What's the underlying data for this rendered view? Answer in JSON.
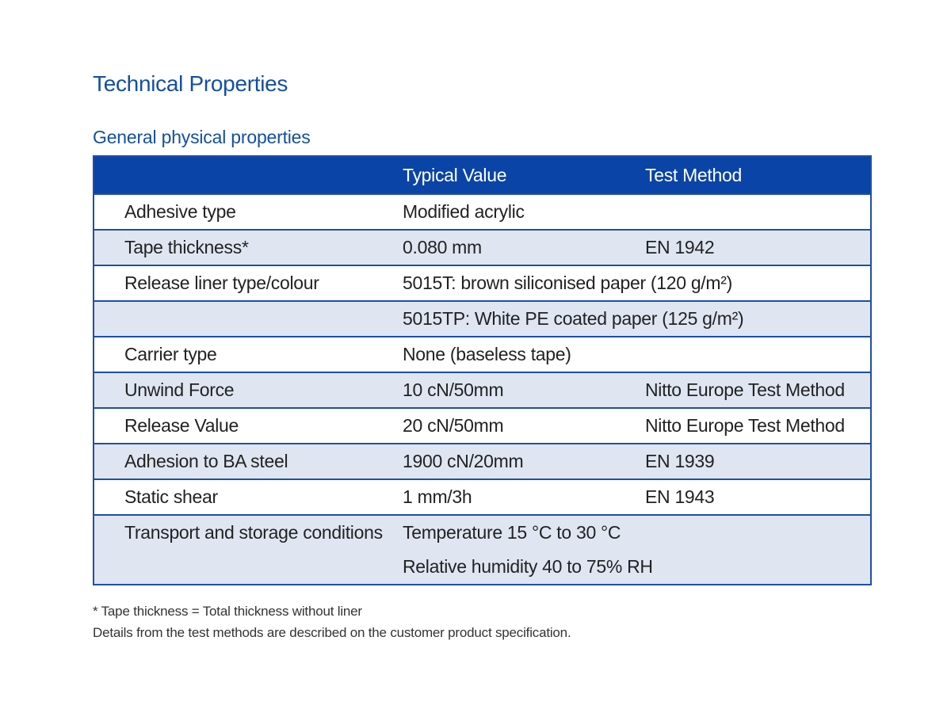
{
  "page_title": "Technical Properties",
  "section_title": "General physical properties",
  "table": {
    "headers": [
      "",
      "Typical Value",
      "Test Method"
    ],
    "rows": [
      {
        "property": "Adhesive type",
        "value": "Modified acrylic",
        "method": "",
        "shaded": false
      },
      {
        "property": "Tape thickness*",
        "value": "0.080 mm",
        "method": "EN 1942",
        "shaded": true
      },
      {
        "property": "Release liner type/colour",
        "value": "5015T: brown siliconised paper (120 g/m²)",
        "method": "",
        "shaded": false
      },
      {
        "property": "",
        "value": "5015TP: White PE coated paper (125 g/m²)",
        "method": "",
        "shaded": true
      },
      {
        "property": "Carrier type",
        "value": "None (baseless tape)",
        "method": "",
        "shaded": false
      },
      {
        "property": "Unwind Force",
        "value": "10 cN/50mm",
        "method": "Nitto Europe Test Method",
        "shaded": true
      },
      {
        "property": "Release Value",
        "value": "20 cN/50mm",
        "method": "Nitto Europe Test Method",
        "shaded": false
      },
      {
        "property": "Adhesion to BA steel",
        "value": "1900 cN/20mm",
        "method": "EN 1939",
        "shaded": true
      },
      {
        "property": "Static shear",
        "value": "1 mm/3h",
        "method": "EN 1943",
        "shaded": false
      },
      {
        "property": "Transport and storage conditions",
        "value": "Temperature 15 °C to 30 °C",
        "method": "",
        "shaded": true
      },
      {
        "property": "",
        "value": "Relative humidity 40 to 75% RH",
        "method": "",
        "shaded": true
      }
    ]
  },
  "footnotes": [
    "* Tape thickness = Total thickness without liner",
    "Details from the test methods are described on the customer product specification."
  ],
  "colors": {
    "heading_blue": "#1450a0",
    "header_bg": "#0a44a6",
    "row_shade": "#dfe6f2",
    "border": "#1e4fa8"
  }
}
